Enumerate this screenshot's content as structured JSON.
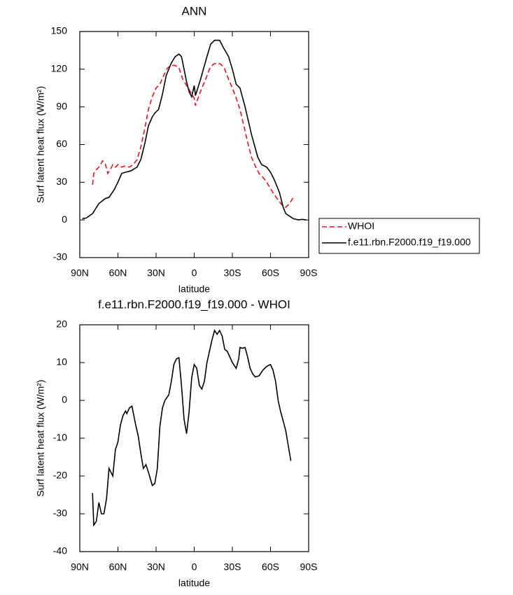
{
  "chart_data": [
    {
      "type": "line",
      "title": "ANN",
      "x_label": "latitude",
      "y_label": "Surf latent heat flux (W/m²)",
      "xlim": [
        90,
        -90
      ],
      "ylim": [
        -30,
        150
      ],
      "xticks": [
        {
          "value": 90,
          "label": "90N"
        },
        {
          "value": 60,
          "label": "60N"
        },
        {
          "value": 30,
          "label": "30N"
        },
        0,
        {
          "value": -30,
          "label": "30S"
        },
        {
          "value": -60,
          "label": "60S"
        },
        {
          "value": -90,
          "label": "90S"
        }
      ],
      "yticks": [
        -30,
        0,
        30,
        60,
        90,
        120,
        150
      ],
      "legend": "right",
      "series": [
        {
          "name": "WHOI",
          "color": "#e8141c",
          "dashed": true,
          "x": [
            80,
            79,
            77,
            75,
            72,
            70,
            68,
            66,
            64,
            62,
            60,
            57,
            54,
            51,
            48,
            45,
            42,
            39,
            36,
            33,
            30,
            27,
            24,
            21,
            18,
            15,
            12,
            9,
            6,
            3,
            0,
            -1,
            -3,
            -6,
            -9,
            -12,
            -15,
            -18,
            -21,
            -24,
            -27,
            -30,
            -33,
            -36,
            -39,
            -42,
            -45,
            -48,
            -51,
            -54,
            -57,
            -60,
            -63,
            -66,
            -69,
            -72,
            -75,
            -78
          ],
          "values": [
            28,
            37,
            40,
            42,
            47,
            45,
            37,
            40,
            44,
            42,
            44,
            42,
            43,
            42,
            44,
            48,
            58,
            72,
            88,
            98,
            105,
            108,
            115,
            121,
            123,
            123,
            121,
            112,
            107,
            102,
            97,
            91,
            97,
            105,
            112,
            120,
            124,
            125,
            124,
            120,
            112,
            105,
            97,
            88,
            75,
            62,
            50,
            43,
            37,
            34,
            30,
            25,
            20,
            16,
            12,
            10,
            13,
            18
          ]
        },
        {
          "name": "f.e11.rbn.F2000.f19_f19.000",
          "color": "#000000",
          "dashed": false,
          "x": [
            88,
            85,
            80,
            75,
            70,
            67,
            63,
            60,
            57,
            54,
            50,
            45,
            42,
            39,
            36,
            33,
            31,
            28,
            25,
            22,
            18,
            15,
            12,
            10,
            8,
            6,
            4,
            2,
            0,
            -1,
            -5,
            -10,
            -13,
            -16,
            -20,
            -23,
            -27,
            -30,
            -33,
            -36,
            -40,
            -45,
            -50,
            -53,
            -57,
            -60,
            -63,
            -67,
            -70,
            -72,
            -75,
            -78,
            -82,
            -85,
            -88
          ],
          "values": [
            1,
            1.5,
            5,
            13,
            17,
            18,
            24,
            30,
            37,
            38,
            39,
            42,
            48,
            60,
            75,
            82,
            85,
            88,
            100,
            115,
            125,
            130,
            132,
            130,
            120,
            110,
            102,
            98,
            107,
            99,
            112,
            130,
            140,
            143,
            143,
            137,
            130,
            120,
            108,
            105,
            90,
            68,
            50,
            44,
            42,
            38,
            32,
            22,
            10,
            5,
            3,
            1,
            0,
            0.5,
            0
          ]
        }
      ]
    },
    {
      "type": "line",
      "title": "f.e11.rbn.F2000.f19_f19.000 - WHOI",
      "x_label": "latitude",
      "y_label": "Surf latent heat flux (W/m²)",
      "xlim": [
        90,
        -90
      ],
      "ylim": [
        -40,
        20
      ],
      "xticks": [
        {
          "value": 90,
          "label": "90N"
        },
        {
          "value": 60,
          "label": "60N"
        },
        {
          "value": 30,
          "label": "30N"
        },
        0,
        {
          "value": -30,
          "label": "30S"
        },
        {
          "value": -60,
          "label": "60S"
        },
        {
          "value": -90,
          "label": "90S"
        }
      ],
      "yticks": [
        -40,
        -30,
        -20,
        -10,
        0,
        10,
        20
      ],
      "series": [
        {
          "color": "#000000",
          "dashed": false,
          "x": [
            80,
            79,
            77,
            75,
            73,
            71,
            69,
            67,
            64,
            62,
            60,
            58,
            56,
            54,
            53,
            51,
            49,
            46,
            44,
            42,
            40,
            38,
            36,
            33,
            31,
            29,
            27,
            25,
            23,
            20,
            18,
            16,
            14,
            12,
            10,
            8,
            6,
            4,
            2,
            0,
            -2,
            -4,
            -6,
            -8,
            -10,
            -12,
            -14,
            -16,
            -18,
            -20,
            -22,
            -24,
            -26,
            -28,
            -30,
            -32,
            -33,
            -35,
            -36,
            -38,
            -40,
            -42,
            -44,
            -46,
            -48,
            -51,
            -54,
            -57,
            -60,
            -62,
            -64,
            -66,
            -68,
            -70,
            -72,
            -74,
            -76
          ],
          "values": [
            -24.5,
            -33,
            -32,
            -27,
            -30,
            -30,
            -26,
            -18,
            -20,
            -13,
            -11,
            -6.5,
            -4,
            -2.8,
            -3.5,
            -2,
            -1.5,
            -6.5,
            -9.5,
            -14,
            -18,
            -17,
            -19,
            -22.5,
            -22,
            -18,
            -7,
            -2,
            0,
            1.5,
            5,
            9.5,
            11,
            11.3,
            4,
            -5,
            -8.8,
            -3,
            6,
            9.5,
            8.5,
            4,
            3,
            5,
            10,
            13,
            16,
            18.5,
            17.5,
            18.5,
            17,
            13.5,
            13,
            11.5,
            10,
            9,
            8.5,
            11,
            14,
            13.8,
            14,
            11.5,
            8.5,
            7,
            6.2,
            6.5,
            8,
            9,
            9.5,
            8,
            5,
            0,
            -3,
            -5.5,
            -8,
            -12,
            -16
          ]
        }
      ]
    }
  ]
}
